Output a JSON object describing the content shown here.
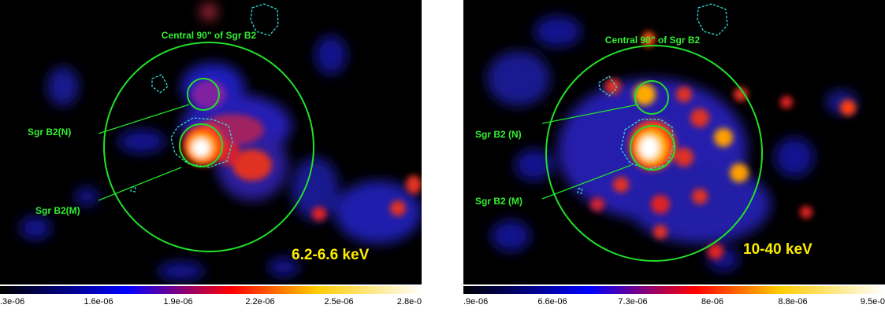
{
  "panels": [
    {
      "id": "left",
      "energy_label": "6.2-6.6 keV",
      "region_title": "Central 90\" of Sgr B2",
      "source_north": "Sgr B2(N)",
      "source_main": "Sgr B2(M)",
      "colorbar_ticks": [
        ".3e-06",
        "1.6e-06",
        "1.9e-06",
        "2.2e-06",
        "2.5e-06",
        "2.8e-0"
      ]
    },
    {
      "id": "right",
      "energy_label": "10-40 keV",
      "region_title": "Central 90\" of Sgr B2",
      "source_north": "Sgr B2 (N)",
      "source_main": "Sgr B2 (M)",
      "colorbar_ticks": [
        ".9e-06",
        "6.6e-06",
        "7.3e-06",
        "8e-06",
        "8.8e-06",
        "9.5e-0"
      ]
    }
  ],
  "colors": {
    "background": "#000000",
    "region_circle": "#22e02a",
    "label_green": "#33ee33",
    "energy_label": "#ffee00",
    "contour": "#33dddd"
  },
  "colormap": [
    "#000000",
    "#0000ff",
    "#ff0000",
    "#ffdd00",
    "#ffffff"
  ]
}
